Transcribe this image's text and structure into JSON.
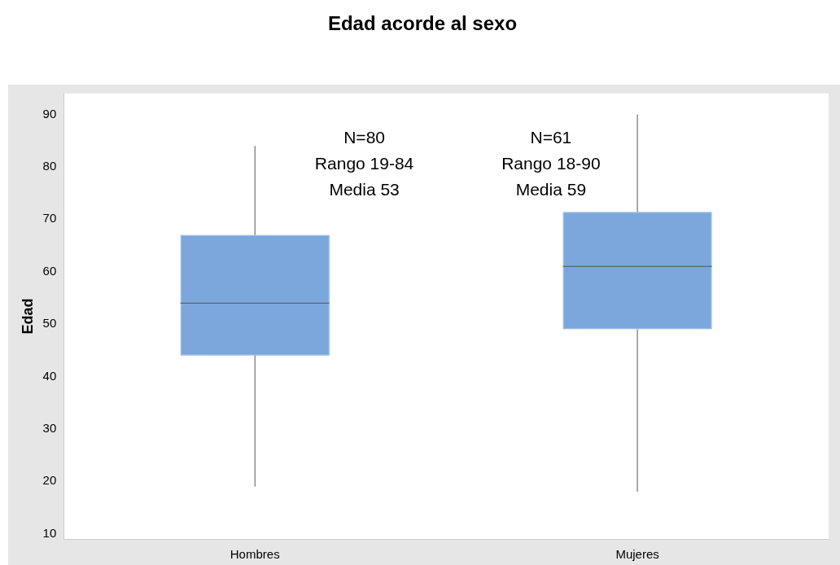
{
  "chart_data": {
    "type": "box",
    "title": "Edad acorde al sexo",
    "ylabel": "Edad",
    "categories": [
      "Hombres",
      "Mujeres"
    ],
    "series": [
      {
        "color": "#7ba7dc",
        "boxes": [
          {
            "low": 19,
            "q1": 44,
            "median": 54,
            "q3": 67,
            "high": 84
          },
          {
            "low": 18,
            "q1": 49,
            "median": 61,
            "q3": 71.4,
            "high": 90
          }
        ]
      }
    ],
    "ylim": [
      9,
      94
    ],
    "yticks": [
      10,
      20,
      30,
      40,
      50,
      60,
      70,
      80,
      90
    ],
    "grid": false,
    "legend": false,
    "annotations": [
      "N=80\nRango 19-84\nMedia 53",
      "N=61\nRango 18-90\nMedia 59"
    ]
  }
}
